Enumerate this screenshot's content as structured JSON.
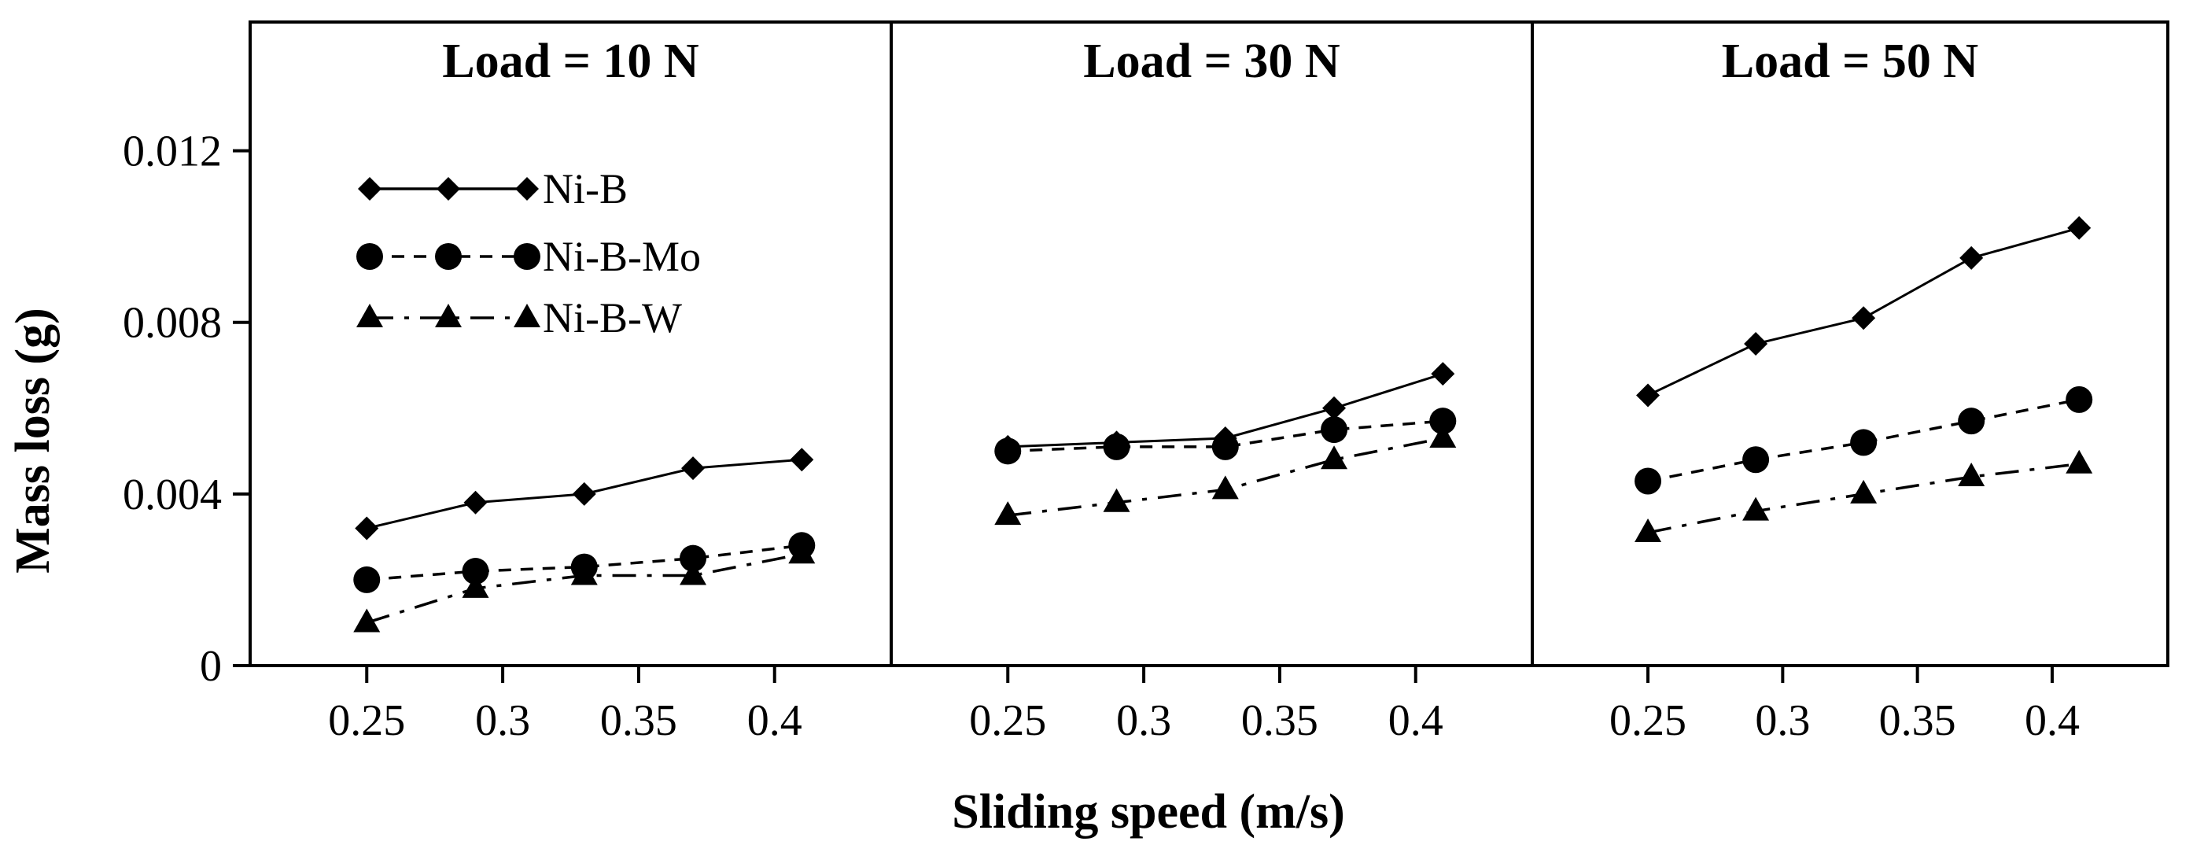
{
  "chart_data": {
    "type": "line",
    "xlabel": "Sliding speed (m/s)",
    "ylabel": "Mass loss (g)",
    "ylim": [
      0,
      0.015
    ],
    "yticks": [
      {
        "value": 0,
        "label": "0"
      },
      {
        "value": 0.004,
        "label": "0.004"
      },
      {
        "value": 0.008,
        "label": "0.008"
      },
      {
        "value": 0.012,
        "label": "0.012"
      }
    ],
    "xlim": [
      0.21,
      0.44
    ],
    "xticks": [
      {
        "value": 0.25,
        "label": "0.25"
      },
      {
        "value": 0.3,
        "label": "0.3"
      },
      {
        "value": 0.35,
        "label": "0.35"
      },
      {
        "value": 0.4,
        "label": "0.4"
      }
    ],
    "x": [
      0.25,
      0.29,
      0.33,
      0.37,
      0.41
    ],
    "legend": {
      "placement": "upper-left of first panel",
      "entries": [
        "Ni-B",
        "Ni-B-Mo",
        "Ni-B-W"
      ]
    },
    "series_styles": [
      {
        "name": "Ni-B",
        "marker": "diamond",
        "dash": "solid"
      },
      {
        "name": "Ni-B-Mo",
        "marker": "circle",
        "dash": "dashed"
      },
      {
        "name": "Ni-B-W",
        "marker": "triangle",
        "dash": "dash-dot"
      }
    ],
    "panels": [
      {
        "title": "Load = 10 N",
        "series": [
          {
            "name": "Ni-B",
            "values": [
              0.0032,
              0.0038,
              0.004,
              0.0046,
              0.0048
            ]
          },
          {
            "name": "Ni-B-Mo",
            "values": [
              0.002,
              0.0022,
              0.0023,
              0.0025,
              0.0028
            ]
          },
          {
            "name": "Ni-B-W",
            "values": [
              0.001,
              0.0018,
              0.0021,
              0.0021,
              0.0026
            ]
          }
        ]
      },
      {
        "title": "Load = 30 N",
        "series": [
          {
            "name": "Ni-B",
            "values": [
              0.0051,
              0.0052,
              0.0053,
              0.006,
              0.0068
            ]
          },
          {
            "name": "Ni-B-Mo",
            "values": [
              0.005,
              0.0051,
              0.0051,
              0.0055,
              0.0057
            ]
          },
          {
            "name": "Ni-B-W",
            "values": [
              0.0035,
              0.0038,
              0.0041,
              0.0048,
              0.0053
            ]
          }
        ]
      },
      {
        "title": "Load = 50 N",
        "series": [
          {
            "name": "Ni-B",
            "values": [
              0.0063,
              0.0075,
              0.0081,
              0.0095,
              0.0102
            ]
          },
          {
            "name": "Ni-B-Mo",
            "values": [
              0.0043,
              0.0048,
              0.0052,
              0.0057,
              0.0062
            ]
          },
          {
            "name": "Ni-B-W",
            "values": [
              0.0031,
              0.0036,
              0.004,
              0.0044,
              0.0047
            ]
          }
        ]
      }
    ]
  },
  "colors": {
    "ink": "#000000",
    "background": "#ffffff"
  }
}
